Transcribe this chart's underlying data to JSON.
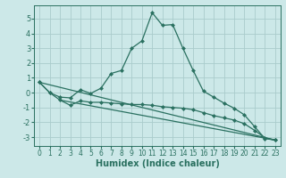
{
  "title": "",
  "xlabel": "Humidex (Indice chaleur)",
  "bg_color": "#cce8e8",
  "grid_color": "#aacccc",
  "line_color": "#2a7060",
  "xlim": [
    -0.5,
    23.5
  ],
  "ylim": [
    -3.6,
    5.9
  ],
  "xticks": [
    0,
    1,
    2,
    3,
    4,
    5,
    6,
    7,
    8,
    9,
    10,
    11,
    12,
    13,
    14,
    15,
    16,
    17,
    18,
    19,
    20,
    21,
    22,
    23
  ],
  "yticks": [
    -3,
    -2,
    -1,
    0,
    1,
    2,
    3,
    4,
    5
  ],
  "line1_x": [
    0,
    1,
    2,
    3,
    4,
    5,
    6,
    7,
    8,
    9,
    10,
    11,
    12,
    13,
    14,
    15,
    16,
    17,
    18,
    19,
    20,
    21,
    22,
    23
  ],
  "line1_y": [
    0.7,
    0.0,
    -0.3,
    -0.35,
    0.2,
    -0.05,
    0.3,
    1.3,
    1.5,
    3.0,
    3.5,
    5.4,
    4.55,
    4.6,
    3.0,
    1.5,
    0.1,
    -0.3,
    -0.7,
    -1.05,
    -1.5,
    -2.3,
    -3.1,
    -3.2
  ],
  "line2_x": [
    0,
    1,
    2,
    3,
    4,
    5,
    6,
    7,
    8,
    9,
    10,
    11,
    12,
    13,
    14,
    15,
    16,
    17,
    18,
    19,
    20,
    21,
    22,
    23
  ],
  "line2_y": [
    0.7,
    0.0,
    -0.5,
    -0.85,
    -0.55,
    -0.65,
    -0.65,
    -0.7,
    -0.75,
    -0.8,
    -0.8,
    -0.85,
    -0.95,
    -1.0,
    -1.05,
    -1.15,
    -1.35,
    -1.55,
    -1.7,
    -1.85,
    -2.1,
    -2.55,
    -3.05,
    -3.2
  ],
  "line3_x": [
    0,
    23
  ],
  "line3_y": [
    0.7,
    -3.2
  ],
  "line4_x": [
    2,
    23
  ],
  "line4_y": [
    -0.5,
    -3.2
  ]
}
